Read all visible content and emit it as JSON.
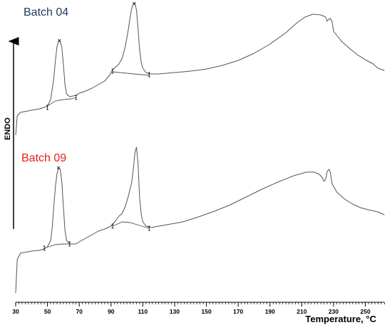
{
  "chart_data": {
    "type": "line",
    "title": "",
    "xlabel": "Temperature, °C",
    "ylabel": "ENDO",
    "xlim": [
      30,
      262
    ],
    "x_ticks": [
      30,
      50,
      70,
      90,
      110,
      130,
      150,
      170,
      190,
      210,
      230,
      250
    ],
    "grid": false,
    "legend": "inline",
    "series": [
      {
        "name": "Batch 04",
        "color": "#555555",
        "points": [
          [
            30,
            190
          ],
          [
            31,
            163
          ],
          [
            33,
            158
          ],
          [
            40,
            155
          ],
          [
            45,
            153
          ],
          [
            48,
            151
          ],
          [
            50,
            149
          ],
          [
            52,
            140
          ],
          [
            54,
            110
          ],
          [
            55,
            85
          ],
          [
            56,
            65
          ],
          [
            57,
            58
          ],
          [
            58,
            58
          ],
          [
            59,
            66
          ],
          [
            60,
            90
          ],
          [
            61,
            118
          ],
          [
            62,
            132
          ],
          [
            64,
            136
          ],
          [
            68,
            134
          ],
          [
            70,
            131
          ],
          [
            74,
            128
          ],
          [
            78,
            124
          ],
          [
            82,
            119
          ],
          [
            86,
            114
          ],
          [
            89,
            106
          ],
          [
            91,
            98
          ],
          [
            93,
            94
          ],
          [
            95,
            90
          ],
          [
            97,
            82
          ],
          [
            99,
            65
          ],
          [
            101,
            40
          ],
          [
            102,
            24
          ],
          [
            103,
            12
          ],
          [
            104,
            6
          ],
          [
            105,
            5
          ],
          [
            106,
            14
          ],
          [
            107,
            40
          ],
          [
            108,
            70
          ],
          [
            109,
            88
          ],
          [
            110,
            96
          ],
          [
            112,
            102
          ],
          [
            114,
            104
          ],
          [
            120,
            104
          ],
          [
            130,
            102
          ],
          [
            140,
            100
          ],
          [
            150,
            97
          ],
          [
            160,
            92
          ],
          [
            170,
            85
          ],
          [
            180,
            75
          ],
          [
            190,
            62
          ],
          [
            200,
            46
          ],
          [
            207,
            32
          ],
          [
            212,
            24
          ],
          [
            217,
            20
          ],
          [
            222,
            21
          ],
          [
            225,
            24
          ],
          [
            226,
            30
          ],
          [
            227,
            27
          ],
          [
            228,
            26
          ],
          [
            229,
            30
          ],
          [
            230,
            44
          ],
          [
            235,
            58
          ],
          [
            240,
            68
          ],
          [
            245,
            77
          ],
          [
            250,
            84
          ],
          [
            255,
            90
          ],
          [
            258,
            96
          ],
          [
            262,
            99
          ]
        ]
      },
      {
        "name": "Batch 09",
        "color": "#555555",
        "points": [
          [
            30,
            412
          ],
          [
            31,
            365
          ],
          [
            33,
            356
          ],
          [
            40,
            353
          ],
          [
            45,
            352
          ],
          [
            48,
            350
          ],
          [
            50,
            347
          ],
          [
            52,
            338
          ],
          [
            53,
            320
          ],
          [
            54,
            290
          ],
          [
            55,
            262
          ],
          [
            56,
            244
          ],
          [
            57,
            236
          ],
          [
            58,
            238
          ],
          [
            59,
            255
          ],
          [
            60,
            290
          ],
          [
            61,
            323
          ],
          [
            62,
            338
          ],
          [
            64,
            343
          ],
          [
            68,
            343
          ],
          [
            70,
            340
          ],
          [
            74,
            335
          ],
          [
            78,
            330
          ],
          [
            82,
            325
          ],
          [
            86,
            322
          ],
          [
            90,
            318
          ],
          [
            93,
            310
          ],
          [
            95,
            304
          ],
          [
            97,
            300
          ],
          [
            99,
            290
          ],
          [
            101,
            275
          ],
          [
            103,
            256
          ],
          [
            104,
            238
          ],
          [
            105,
            215
          ],
          [
            106,
            207
          ],
          [
            107,
            230
          ],
          [
            108,
            278
          ],
          [
            109,
            302
          ],
          [
            110,
            312
          ],
          [
            112,
            318
          ],
          [
            115,
            320
          ],
          [
            125,
            316
          ],
          [
            135,
            312
          ],
          [
            145,
            305
          ],
          [
            155,
            297
          ],
          [
            165,
            288
          ],
          [
            175,
            277
          ],
          [
            185,
            266
          ],
          [
            195,
            256
          ],
          [
            205,
            247
          ],
          [
            213,
            242
          ],
          [
            218,
            242
          ],
          [
            221,
            245
          ],
          [
            223,
            250
          ],
          [
            224,
            255
          ],
          [
            225,
            252
          ],
          [
            226,
            241
          ],
          [
            227,
            238
          ],
          [
            228,
            242
          ],
          [
            229,
            258
          ],
          [
            232,
            270
          ],
          [
            237,
            280
          ],
          [
            242,
            287
          ],
          [
            247,
            292
          ],
          [
            252,
            295
          ],
          [
            258,
            298
          ],
          [
            262,
            302
          ]
        ]
      }
    ],
    "baselines": [
      {
        "series": "Batch 04",
        "points": [
          [
            50,
            149
          ],
          [
            55,
            142
          ],
          [
            60,
            140
          ],
          [
            65,
            139
          ],
          [
            68,
            137
          ]
        ]
      },
      {
        "series": "Batch 04",
        "points": [
          [
            91,
            101
          ],
          [
            100,
            103
          ],
          [
            114,
            106
          ]
        ]
      },
      {
        "series": "Batch 09",
        "points": [
          [
            48,
            349
          ],
          [
            55,
            344
          ],
          [
            60,
            343
          ],
          [
            64,
            343
          ]
        ]
      },
      {
        "series": "Batch 09",
        "points": [
          [
            91,
            318
          ],
          [
            97,
            312
          ],
          [
            102,
            313
          ],
          [
            108,
            317
          ],
          [
            114,
            321
          ]
        ]
      }
    ],
    "peak_markers": [
      {
        "series": "Batch 04",
        "points": [
          [
            57.5,
            57
          ],
          [
            104.5,
            5
          ]
        ]
      },
      {
        "series": "Batch 09",
        "points": [
          [
            57,
            236
          ]
        ]
      }
    ],
    "baseline_markers": [
      {
        "series": "Batch 04",
        "points": [
          [
            50,
            151
          ],
          [
            68,
            137
          ],
          [
            91,
            100
          ],
          [
            114,
            105
          ]
        ]
      },
      {
        "series": "Batch 09",
        "points": [
          [
            48,
            349
          ],
          [
            64,
            343
          ],
          [
            91,
            318
          ],
          [
            114,
            321
          ]
        ]
      }
    ]
  }
}
